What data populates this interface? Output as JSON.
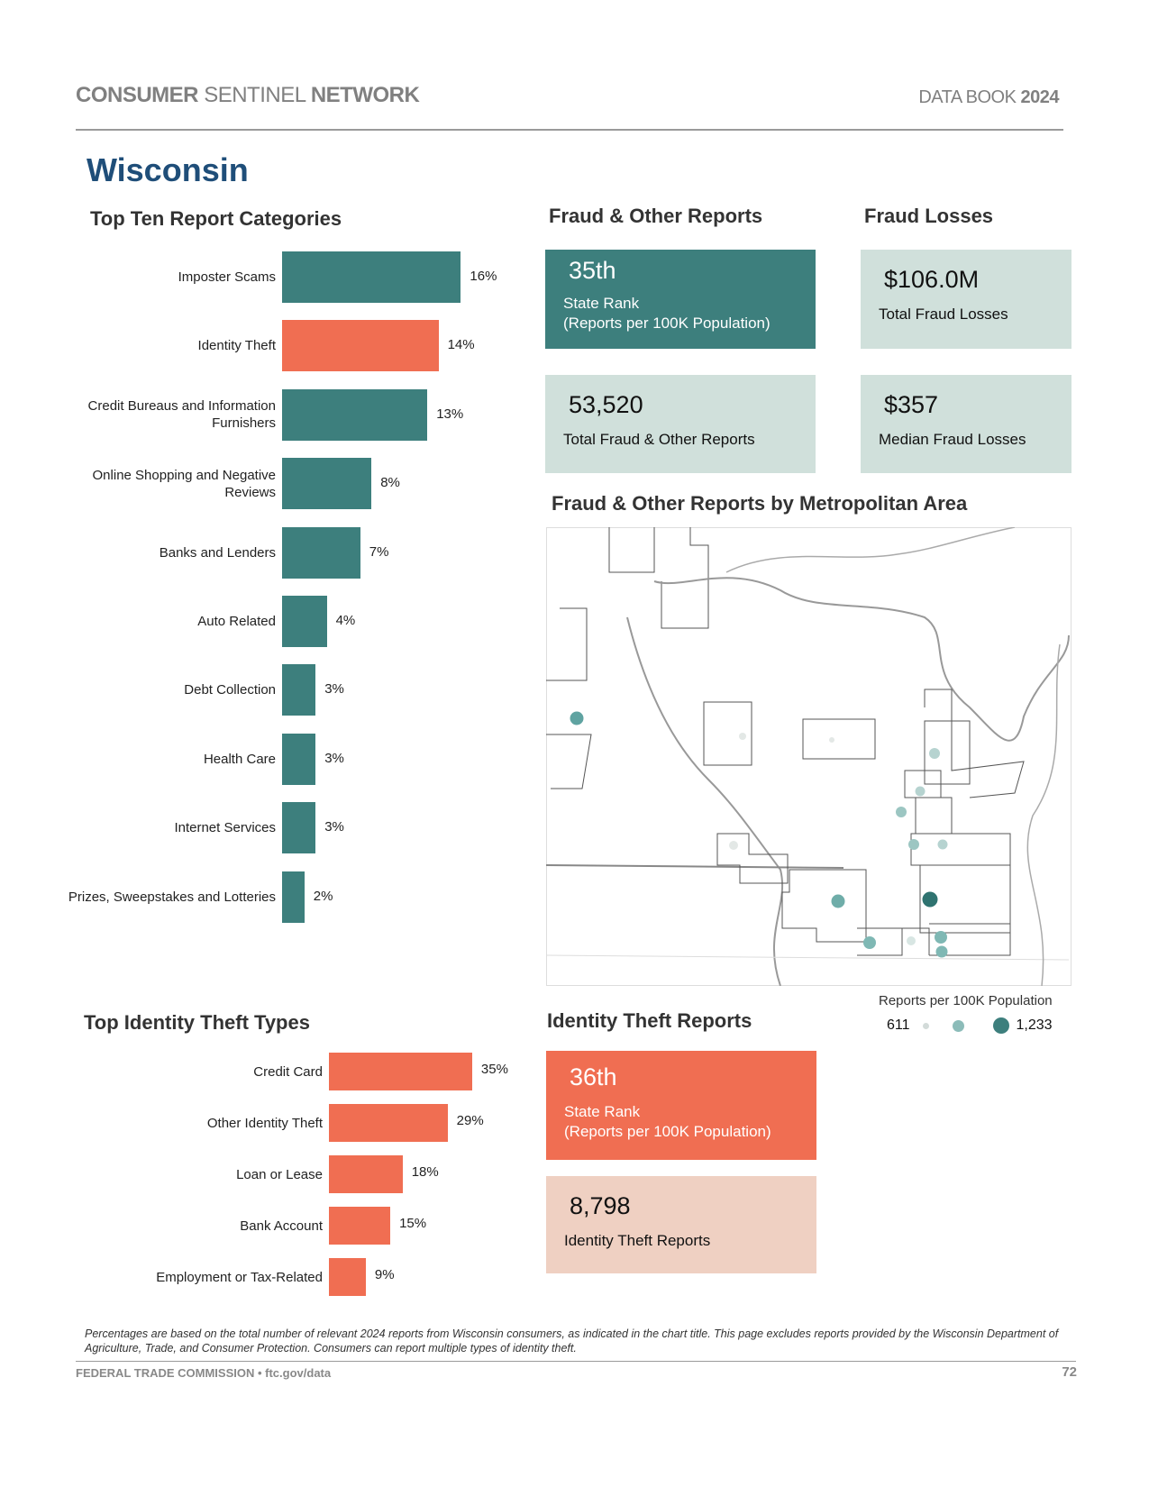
{
  "header": {
    "brand_bold1": "CONSUMER",
    "brand_light": "SENTINEL",
    "brand_bold2": "NETWORK",
    "book_light": "DATA BOOK",
    "book_year": "2024"
  },
  "state": "Wisconsin",
  "colors": {
    "teal": "#3d7f7d",
    "orange": "#f06e52",
    "light_teal": "#d0e0db",
    "peach": "#efd0c2",
    "navy": "#1f4e79"
  },
  "top_ten": {
    "title": "Top Ten Report Categories",
    "items": [
      {
        "label": "Imposter Scams",
        "pct": "16%",
        "value": 16
      },
      {
        "label": "Identity Theft",
        "pct": "14%",
        "value": 14,
        "highlight": true
      },
      {
        "label": "Credit Bureaus and Information Furnishers",
        "pct": "13%",
        "value": 13
      },
      {
        "label": "Online Shopping and Negative Reviews",
        "pct": "8%",
        "value": 8
      },
      {
        "label": "Banks and Lenders",
        "pct": "7%",
        "value": 7
      },
      {
        "label": "Auto Related",
        "pct": "4%",
        "value": 4
      },
      {
        "label": "Debt Collection",
        "pct": "3%",
        "value": 3
      },
      {
        "label": "Health Care",
        "pct": "3%",
        "value": 3
      },
      {
        "label": "Internet Services",
        "pct": "3%",
        "value": 3
      },
      {
        "label": "Prizes, Sweepstakes and Lotteries",
        "pct": "2%",
        "value": 2
      }
    ]
  },
  "fraud": {
    "title": "Fraud & Other Reports",
    "rank": "35th",
    "rank_label": "State Rank",
    "rank_sub": "(Reports per 100K Population)",
    "total": "53,520",
    "total_label": "Total Fraud & Other Reports"
  },
  "losses": {
    "title": "Fraud Losses",
    "total": "$106.0M",
    "total_label": "Total Fraud Losses",
    "median": "$357",
    "median_label": "Median Fraud Losses"
  },
  "map": {
    "title": "Fraud & Other Reports by Metropolitan Area",
    "legend_title": "Reports per 100K Population",
    "legend_min": "611",
    "legend_max": "1,233"
  },
  "id_types": {
    "title": "Top Identity Theft Types",
    "items": [
      {
        "label": "Credit Card",
        "pct": "35%",
        "value": 35
      },
      {
        "label": "Other Identity Theft",
        "pct": "29%",
        "value": 29
      },
      {
        "label": "Loan or Lease",
        "pct": "18%",
        "value": 18
      },
      {
        "label": "Bank Account",
        "pct": "15%",
        "value": 15
      },
      {
        "label": "Employment or Tax-Related",
        "pct": "9%",
        "value": 9
      }
    ]
  },
  "id_reports": {
    "title": "Identity Theft Reports",
    "rank": "36th",
    "rank_label": "State Rank",
    "rank_sub": "(Reports per 100K Population)",
    "total": "8,798",
    "total_label": "Identity Theft Reports"
  },
  "footnote": "Percentages are based on the total number of relevant 2024 reports from Wisconsin consumers, as indicated in the chart title. This page excludes reports provided by the Wisconsin Department of Agriculture, Trade, and Consumer Protection.  Consumers can report multiple types of identity theft.",
  "footer": {
    "left": "FEDERAL TRADE COMMISSION • ftc.gov/data",
    "page": "72"
  }
}
